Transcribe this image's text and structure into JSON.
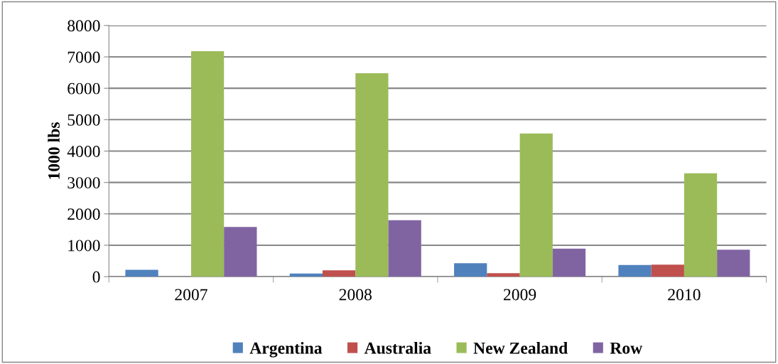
{
  "chart_data": {
    "type": "bar",
    "ylabel": "1000 lbs",
    "categories": [
      "2007",
      "2008",
      "2009",
      "2010"
    ],
    "series": [
      {
        "name": "Argentina",
        "color": "#4f81bd",
        "values": [
          220,
          100,
          430,
          370
        ]
      },
      {
        "name": "Australia",
        "color": "#c0504d",
        "values": [
          null,
          200,
          110,
          380
        ]
      },
      {
        "name": "New Zealand",
        "color": "#9bbb59",
        "values": [
          7180,
          6480,
          4560,
          3290
        ]
      },
      {
        "name": "Row",
        "color": "#8064a2",
        "values": [
          1580,
          1800,
          890,
          860
        ]
      }
    ],
    "ylim": [
      0,
      8000
    ],
    "yticks": [
      0,
      1000,
      2000,
      3000,
      4000,
      5000,
      6000,
      7000,
      8000
    ],
    "grid": "y",
    "legend": "bottom"
  }
}
